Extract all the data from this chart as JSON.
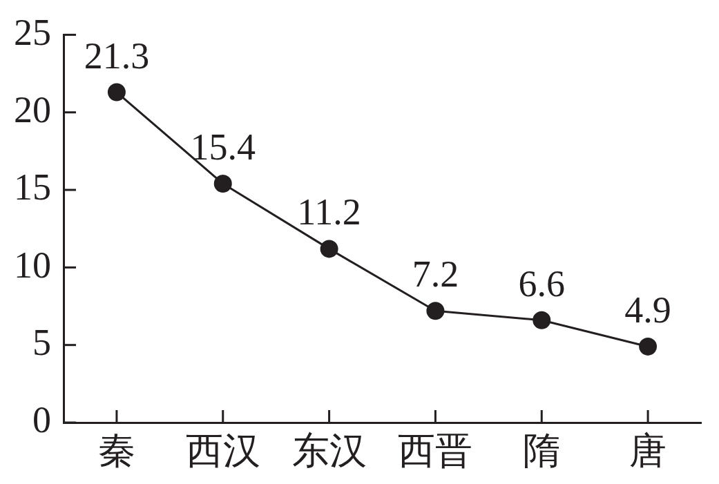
{
  "chart_data": {
    "type": "line",
    "categories": [
      "秦",
      "西汉",
      "东汉",
      "西晋",
      "隋",
      "唐"
    ],
    "series": [
      {
        "color": "#231f20",
        "values": [
          21.3,
          15.4,
          11.2,
          7.2,
          6.6,
          4.9
        ]
      }
    ],
    "ylim": [
      0,
      25
    ],
    "yticks": [
      0,
      5,
      10,
      15,
      20,
      25
    ],
    "data_labels": true,
    "marker": "circle",
    "line_style": "solid"
  }
}
